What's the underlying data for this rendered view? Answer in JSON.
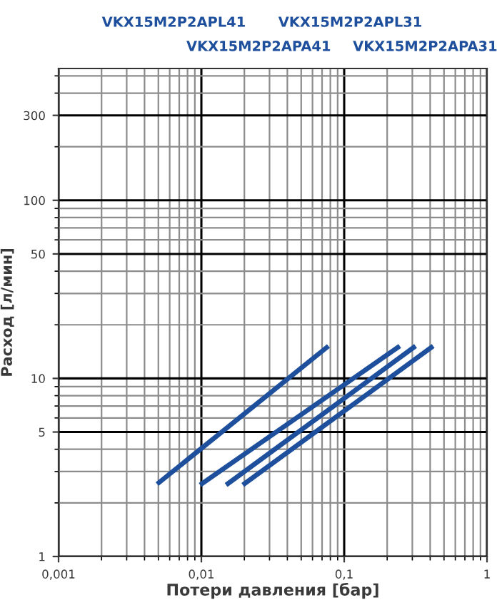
{
  "chart_data": {
    "type": "line",
    "xlabel": "Потери давления [бар]",
    "ylabel": "Расход [л/мин]",
    "annotations": [
      "VKX15M2P2APL41",
      "VKX15M2P2APL31",
      "VKX15M2P2APA41",
      "VKX15M2P2APA31"
    ],
    "series": [
      {
        "color": "#1e4f9c",
        "x": [
          0.0049,
          0.0776
        ],
        "values": [
          2.55,
          15.2
        ]
      },
      {
        "color": "#1e4f9c",
        "x": [
          0.0098,
          0.245
        ],
        "values": [
          2.52,
          15.2
        ]
      },
      {
        "color": "#1e4f9c",
        "x": [
          0.0149,
          0.316
        ],
        "values": [
          2.52,
          15.2
        ]
      },
      {
        "color": "#1e4f9c",
        "x": [
          0.0195,
          0.42
        ],
        "values": [
          2.52,
          15.2
        ]
      }
    ],
    "log": "xy",
    "xlim": [
      0.001,
      1
    ],
    "ylim": [
      1,
      550
    ],
    "xticks": [
      {
        "value": 0.001,
        "label": "0,001"
      },
      {
        "value": 0.01,
        "label": "0,01"
      },
      {
        "value": 0.1,
        "label": "0,1"
      },
      1
    ],
    "yticks": [
      1,
      5,
      10,
      50,
      100,
      300
    ],
    "grid": true,
    "marker": "none",
    "line_style": "solid"
  }
}
